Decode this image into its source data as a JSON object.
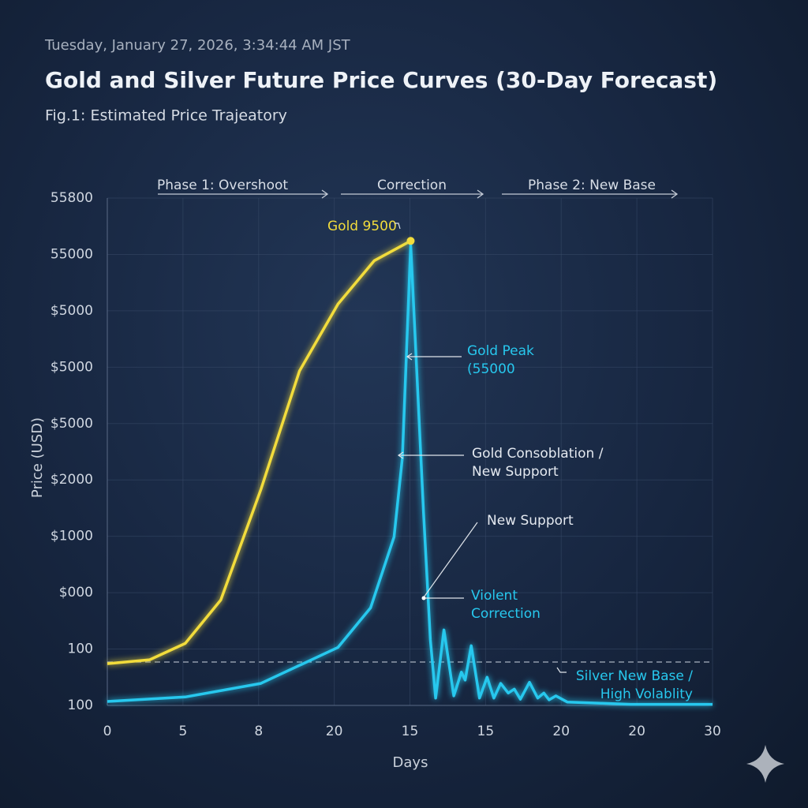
{
  "chart_data": {
    "type": "line",
    "timestamp": "Tuesday, January 27, 2026, 3:34:44 AM JST",
    "title": "Gold and Silver Future Price Curves (30-Day Forecast)",
    "subtitle": "Fig.1: Estimated Price Trajeatory",
    "x_label": "Days",
    "y_label": "Price (USD)",
    "phases": [
      "Phase 1: Overshoot",
      "Correction",
      "Phase 2: New Base"
    ],
    "xlim": [
      0,
      8
    ],
    "xticks": [
      {
        "value": 0,
        "label": "0"
      },
      {
        "value": 1,
        "label": "5"
      },
      {
        "value": 2,
        "label": "8"
      },
      {
        "value": 3,
        "label": "20"
      },
      {
        "value": 4,
        "label": "15"
      },
      {
        "value": 5,
        "label": "15"
      },
      {
        "value": 6,
        "label": "20"
      },
      {
        "value": 7,
        "label": "20"
      },
      {
        "value": 8,
        "label": "30"
      }
    ],
    "ylim": [
      0,
      9
    ],
    "yticks": [
      {
        "value": 0,
        "label": "100"
      },
      {
        "value": 1,
        "label": "100"
      },
      {
        "value": 2,
        "label": "$000"
      },
      {
        "value": 3,
        "label": "$1000"
      },
      {
        "value": 4,
        "label": "$2000"
      },
      {
        "value": 5,
        "label": "$5000"
      },
      {
        "value": 6,
        "label": "$5000"
      },
      {
        "value": 7,
        "label": "$5000"
      },
      {
        "value": 8,
        "label": "55000"
      },
      {
        "value": 9,
        "label": "55800"
      }
    ],
    "grid": true,
    "reference_line": 0.77,
    "series": [
      {
        "color": "#f2dc3c",
        "x": [
          0,
          0.56,
          1.03,
          1.5,
          2.03,
          2.54,
          3.05,
          3.53,
          4.01
        ],
        "values": [
          0.74,
          0.81,
          1.1,
          1.87,
          3.83,
          5.93,
          7.12,
          7.89,
          8.24
        ]
      },
      {
        "color": "#27c8ee",
        "x": [
          0,
          1.03,
          2.03,
          3.05,
          3.48,
          3.79,
          3.9,
          4.01,
          4.18,
          4.27,
          4.34,
          4.45,
          4.58,
          4.68,
          4.73,
          4.81,
          4.92,
          5.02,
          5.11,
          5.2,
          5.3,
          5.38,
          5.46,
          5.58,
          5.69,
          5.77,
          5.84,
          5.93,
          6.08,
          6.92,
          8
        ],
        "values": [
          0.07,
          0.15,
          0.39,
          1.03,
          1.73,
          2.99,
          4.39,
          8.17,
          3.41,
          1.17,
          0.13,
          1.34,
          0.17,
          0.59,
          0.45,
          1.06,
          0.13,
          0.5,
          0.13,
          0.39,
          0.22,
          0.29,
          0.11,
          0.41,
          0.13,
          0.22,
          0.1,
          0.17,
          0.06,
          0.02,
          0.02
        ]
      }
    ],
    "annotations": [
      {
        "text": [
          "Gold 9500"
        ]
      },
      {
        "text": [
          "Gold Peak",
          "(55000"
        ]
      },
      {
        "text": [
          "Gold Consoblation /",
          "New Support"
        ]
      },
      {
        "text": [
          "New Support"
        ]
      },
      {
        "text": [
          "Violent",
          "Correction"
        ]
      },
      {
        "text": [
          "Silver New Base /",
          "High Volablity"
        ]
      }
    ]
  }
}
